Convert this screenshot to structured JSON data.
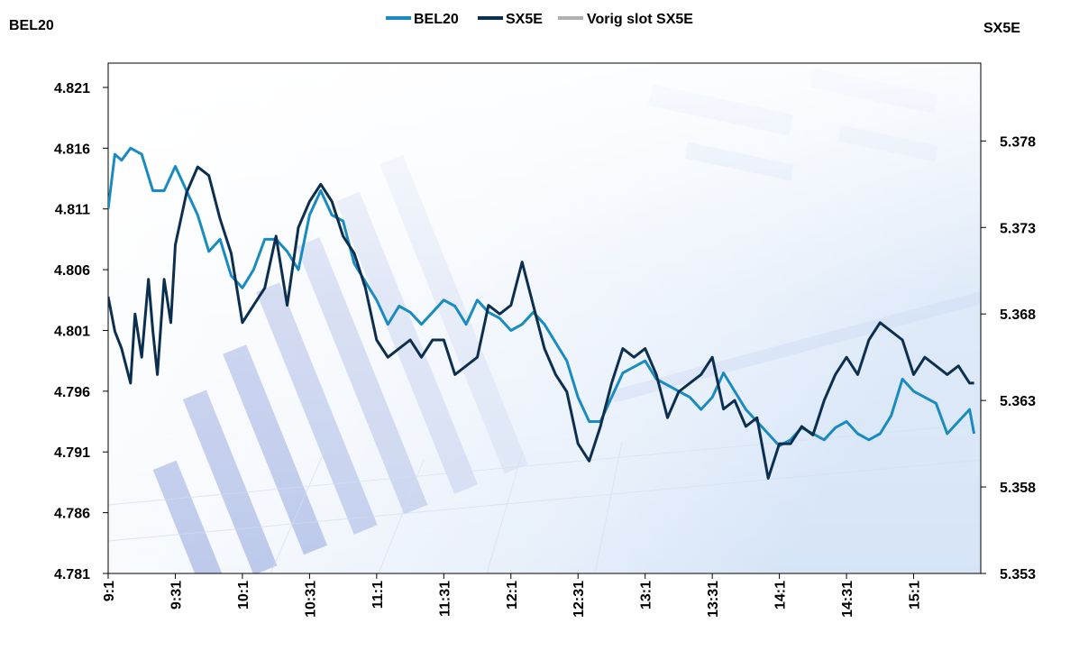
{
  "chart_data": {
    "type": "line",
    "left_axis_title": "BEL20",
    "right_axis_title": "SX5E",
    "legend": [
      {
        "name": "BEL20",
        "color": "#1a8bbf"
      },
      {
        "name": "SX5E",
        "color": "#0d2f4f"
      },
      {
        "name": "Vorig slot SX5E",
        "color": "#b0b0b0"
      }
    ],
    "legend_position": "top-center",
    "x_tick_labels": [
      "9:1",
      "9:31",
      "10:1",
      "10:31",
      "11:1",
      "11:31",
      "12:1",
      "12:31",
      "13:1",
      "13:31",
      "14:1",
      "14:31",
      "15:1"
    ],
    "x_range_minutes": [
      0,
      390
    ],
    "y_left": {
      "ticks": [
        "4.781",
        "4.786",
        "4.791",
        "4.796",
        "4.801",
        "4.806",
        "4.811",
        "4.816",
        "4.821"
      ],
      "min": 4.781,
      "max": 4.823
    },
    "y_right": {
      "ticks": [
        "5.353",
        "5.358",
        "5.363",
        "5.368",
        "5.373",
        "5.378"
      ],
      "min": 5.353,
      "max": 5.3825
    },
    "grid": false,
    "series": [
      {
        "name": "BEL20",
        "axis": "left",
        "color": "#1a8bbf",
        "x": [
          0,
          3,
          6,
          10,
          15,
          20,
          25,
          30,
          35,
          40,
          45,
          50,
          55,
          60,
          65,
          70,
          75,
          80,
          85,
          90,
          95,
          100,
          105,
          110,
          115,
          120,
          125,
          130,
          135,
          140,
          145,
          150,
          155,
          160,
          165,
          170,
          175,
          180,
          185,
          190,
          195,
          200,
          205,
          210,
          215,
          220,
          225,
          230,
          235,
          240,
          245,
          250,
          255,
          260,
          265,
          270,
          275,
          280,
          285,
          290,
          295,
          300,
          305,
          310,
          315,
          320,
          325,
          330,
          335,
          340,
          345,
          350,
          355,
          360,
          365,
          370,
          375,
          380,
          385,
          387
        ],
        "y": [
          4.811,
          4.8155,
          4.815,
          4.816,
          4.8155,
          4.8125,
          4.8125,
          4.8145,
          4.8125,
          4.8105,
          4.8075,
          4.8085,
          4.8055,
          4.8045,
          4.806,
          4.8085,
          4.8085,
          4.8075,
          4.806,
          4.8105,
          4.8125,
          4.8105,
          4.81,
          4.8065,
          4.805,
          4.8035,
          4.8015,
          4.803,
          4.8025,
          4.8015,
          4.8025,
          4.8035,
          4.803,
          4.8015,
          4.8035,
          4.8025,
          4.802,
          4.801,
          4.8015,
          4.8025,
          4.8015,
          4.8,
          4.7985,
          4.7955,
          4.7935,
          4.7935,
          4.7955,
          4.7975,
          4.798,
          4.7985,
          4.797,
          4.7965,
          4.796,
          4.7955,
          4.7945,
          4.7955,
          4.7975,
          4.796,
          4.7945,
          4.7935,
          4.7925,
          4.7915,
          4.792,
          4.793,
          4.7925,
          4.792,
          4.793,
          4.7935,
          4.7925,
          4.792,
          4.7925,
          4.794,
          4.797,
          4.796,
          4.7955,
          4.795,
          4.7925,
          4.7935,
          4.7945,
          4.7925
        ]
      },
      {
        "name": "SX5E",
        "axis": "right",
        "color": "#0d2f4f",
        "x": [
          0,
          3,
          6,
          10,
          12,
          15,
          18,
          20,
          22,
          25,
          28,
          30,
          35,
          40,
          45,
          50,
          55,
          60,
          65,
          70,
          75,
          80,
          85,
          90,
          95,
          100,
          105,
          110,
          115,
          120,
          125,
          130,
          135,
          140,
          145,
          150,
          155,
          160,
          165,
          170,
          175,
          180,
          185,
          190,
          195,
          200,
          205,
          210,
          215,
          220,
          225,
          230,
          235,
          240,
          245,
          250,
          255,
          260,
          265,
          270,
          275,
          280,
          285,
          290,
          295,
          300,
          305,
          310,
          315,
          320,
          325,
          330,
          335,
          340,
          345,
          350,
          355,
          360,
          365,
          370,
          375,
          380,
          385,
          387
        ],
        "y": [
          5.369,
          5.367,
          5.366,
          5.364,
          5.368,
          5.3655,
          5.37,
          5.367,
          5.3645,
          5.37,
          5.3675,
          5.372,
          5.375,
          5.3765,
          5.376,
          5.3735,
          5.3715,
          5.3675,
          5.3685,
          5.3695,
          5.3725,
          5.3685,
          5.373,
          5.3745,
          5.3755,
          5.3745,
          5.3725,
          5.3715,
          5.3695,
          5.3665,
          5.3655,
          5.366,
          5.3665,
          5.3655,
          5.3665,
          5.3665,
          5.3645,
          5.365,
          5.3655,
          5.3685,
          5.368,
          5.3685,
          5.371,
          5.3685,
          5.366,
          5.3645,
          5.3635,
          5.3605,
          5.3595,
          5.3615,
          5.364,
          5.366,
          5.3655,
          5.366,
          5.3645,
          5.362,
          5.3635,
          5.364,
          5.3645,
          5.3655,
          5.3625,
          5.363,
          5.3615,
          5.362,
          5.3585,
          5.3605,
          5.3605,
          5.3615,
          5.361,
          5.363,
          5.3645,
          5.3655,
          5.3645,
          5.3665,
          5.3675,
          5.367,
          5.3665,
          5.3645,
          5.3655,
          5.365,
          5.3645,
          5.365,
          5.364,
          5.364
        ]
      },
      {
        "name": "Vorig slot SX5E",
        "axis": "right",
        "color": "#b0b0b0",
        "x": [],
        "y": []
      }
    ]
  }
}
